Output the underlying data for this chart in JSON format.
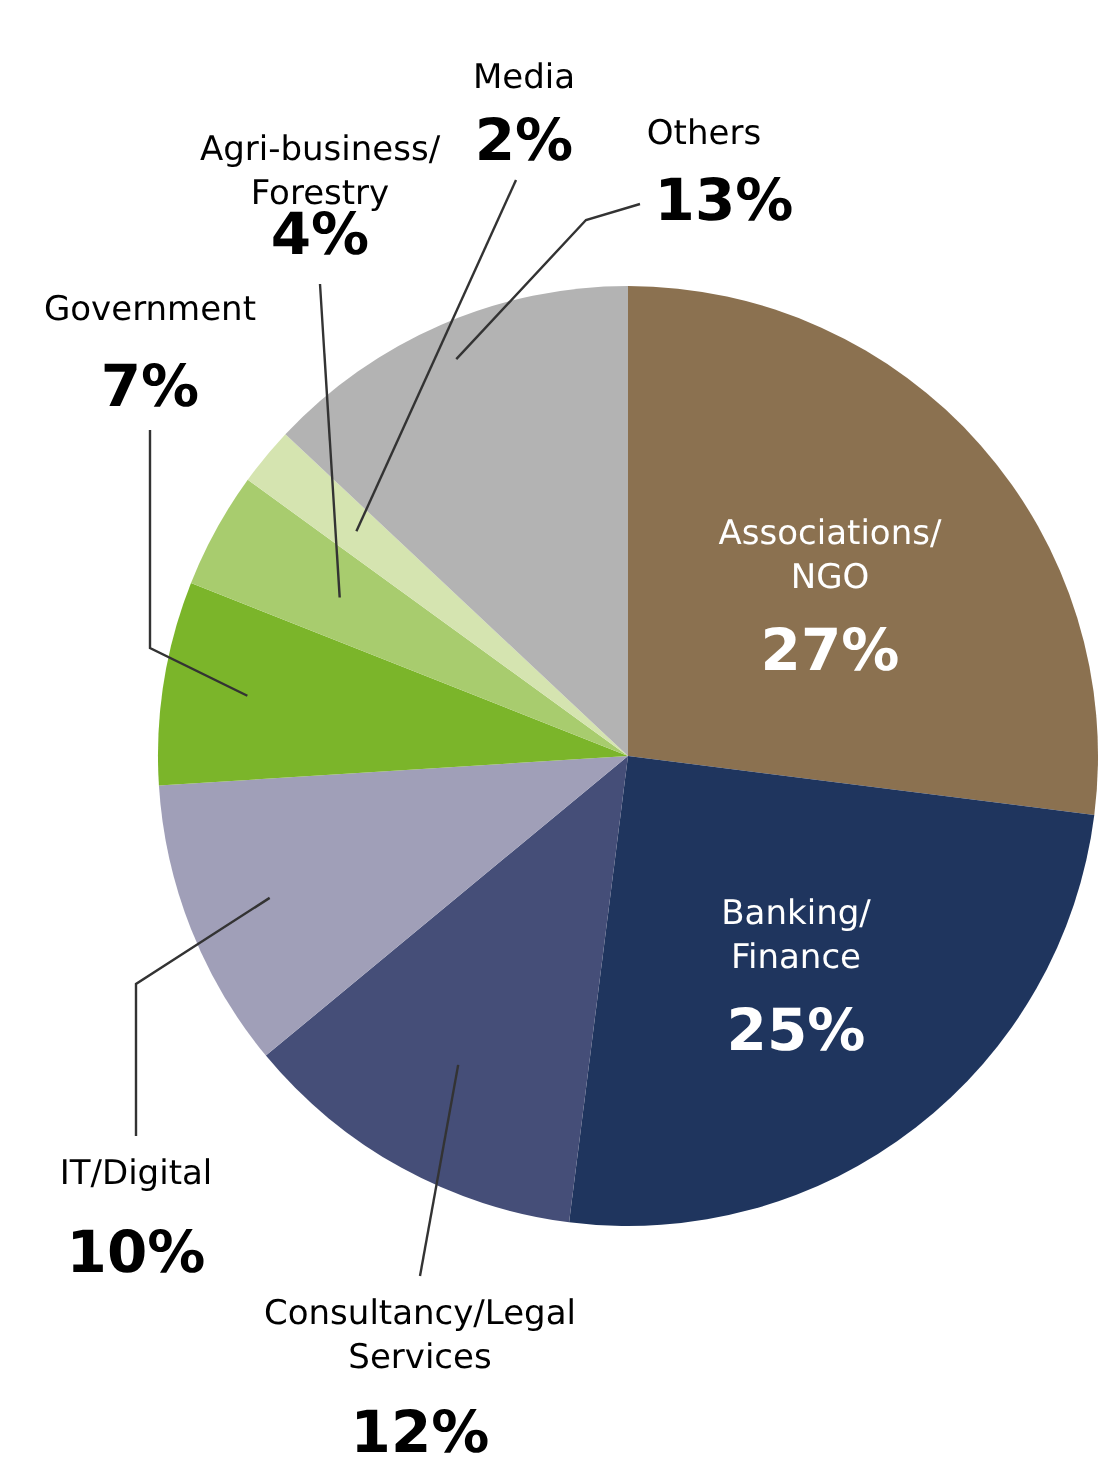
{
  "chart_data": {
    "type": "pie",
    "categories": [
      "Associations/\nNGO",
      "Banking/\nFinance",
      "Consultancy/Legal\nServices",
      "IT/Digital",
      "Government",
      "Agri-business/\nForestry",
      "Media",
      "Others"
    ],
    "values": [
      27,
      25,
      12,
      10,
      7,
      4,
      2,
      13
    ],
    "value_labels": [
      "27%",
      "25%",
      "12%",
      "10%",
      "7%",
      "4%",
      "2%",
      "13%"
    ],
    "colors": [
      "#8b7150",
      "#1f355e",
      "#454e78",
      "#a09fb8",
      "#7bb52a",
      "#a8cc6e",
      "#d5e4b0",
      "#b3b3b3"
    ]
  }
}
